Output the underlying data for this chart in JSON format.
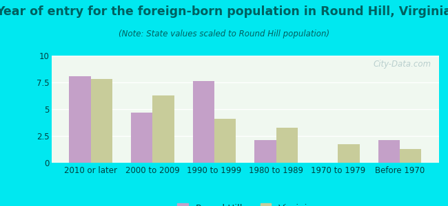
{
  "title": "Year of entry for the foreign-born population in Round Hill, Virginia",
  "subtitle": "(Note: State values scaled to Round Hill population)",
  "categories": [
    "2010 or later",
    "2000 to 2009",
    "1990 to 1999",
    "1980 to 1989",
    "1970 to 1979",
    "Before 1970"
  ],
  "round_hill": [
    8.1,
    4.7,
    7.6,
    2.1,
    0.0,
    2.1
  ],
  "virginia": [
    7.8,
    6.3,
    4.1,
    3.3,
    1.7,
    1.3
  ],
  "round_hill_color": "#c4a0c8",
  "virginia_color": "#c8cc9a",
  "background_outer": "#00e8f0",
  "background_inner": "#f0f8f0",
  "ylim": [
    0,
    10
  ],
  "yticks": [
    0,
    2.5,
    5,
    7.5,
    10
  ],
  "bar_width": 0.35,
  "title_fontsize": 12.5,
  "title_color": "#006060",
  "subtitle_fontsize": 8.5,
  "subtitle_color": "#006060",
  "tick_fontsize": 8.5,
  "tick_color": "#004040",
  "legend_fontsize": 9.5,
  "watermark": "City-Data.com",
  "watermark_color": "#b0c8c8"
}
